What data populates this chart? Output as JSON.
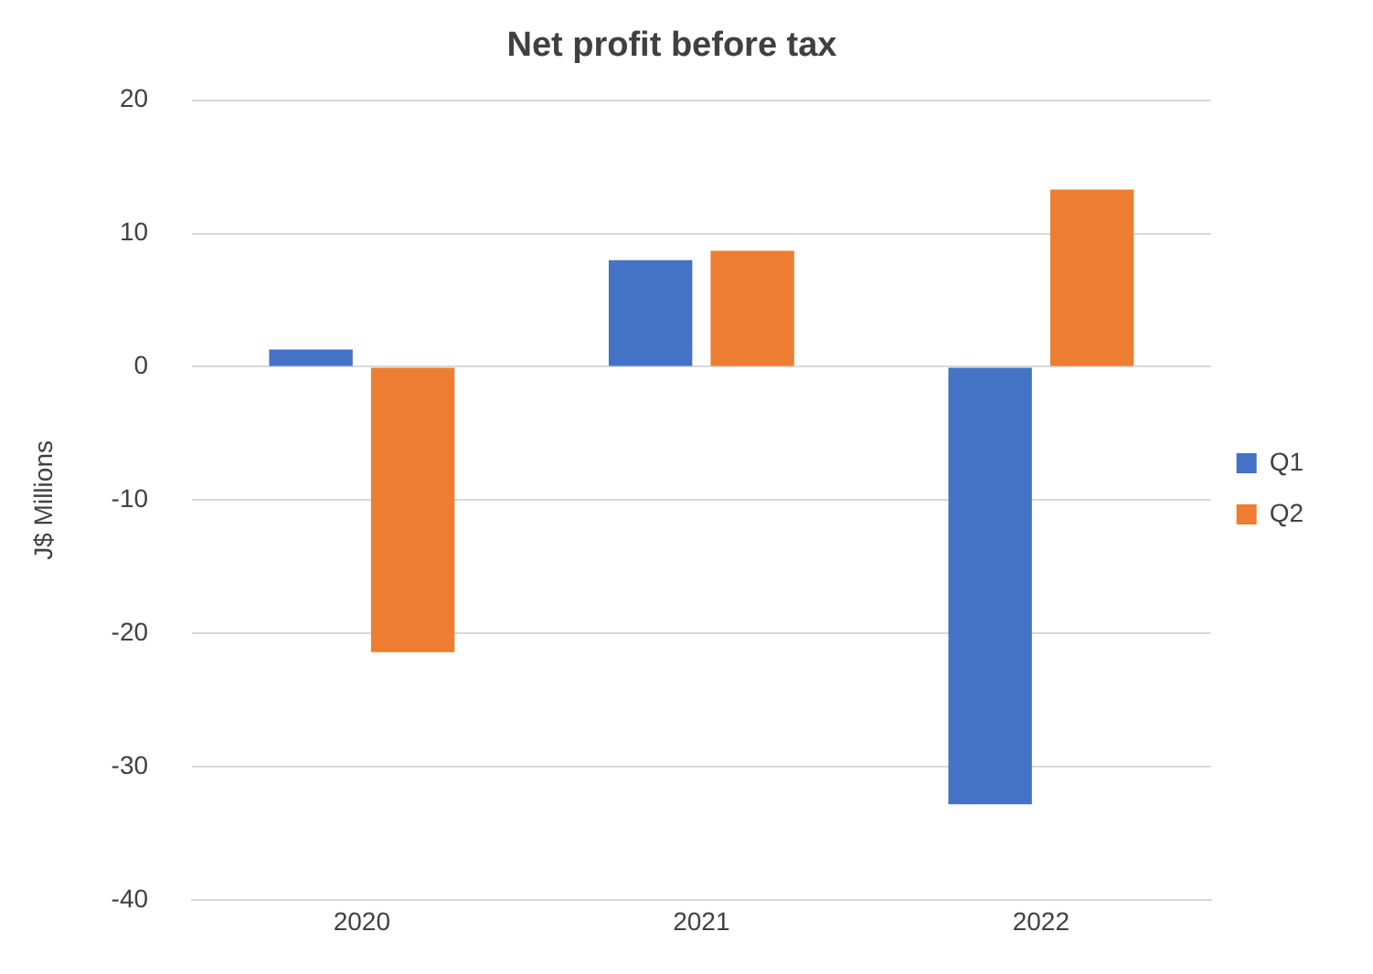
{
  "chart_data": {
    "type": "bar",
    "title": "Net profit before tax",
    "ylabel": "J$ Millions",
    "categories": [
      "2020",
      "2021",
      "2022"
    ],
    "series": [
      {
        "name": "Q1",
        "color": "#4472c4",
        "values": [
          1.3,
          8.0,
          -32.8
        ]
      },
      {
        "name": "Q2",
        "color": "#ed7d31",
        "values": [
          -21.4,
          8.7,
          13.3
        ]
      }
    ],
    "ylim": [
      -40,
      20
    ],
    "yticks": [
      -40,
      -30,
      -20,
      -10,
      0,
      10,
      20
    ],
    "grid": "y",
    "legend": "right"
  }
}
